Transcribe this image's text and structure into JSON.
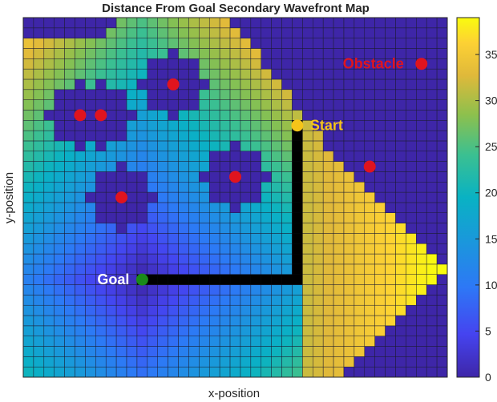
{
  "chart_data": {
    "type": "heatmap",
    "title": "Distance From Goal Secondary Wavefront Map",
    "xlabel": "x-position",
    "ylabel": "y-position",
    "grid": {
      "cols": 41,
      "rows": 35
    },
    "colormap": "parula",
    "colorbar": {
      "ticks": [
        0,
        5,
        10,
        15,
        20,
        25,
        30,
        35
      ],
      "range": [
        0,
        39
      ]
    },
    "goal": {
      "label": "Goal",
      "cell": [
        11,
        9
      ],
      "color": "#1a8a1a"
    },
    "start": {
      "label": "Start",
      "cell": [
        26,
        24
      ],
      "color": "#f5c419"
    },
    "obstacle_label": "Obstacle",
    "obstacles": [
      {
        "cell": [
          5,
          25
        ],
        "radius": 3.0
      },
      {
        "cell": [
          7,
          25
        ],
        "radius": 3.0
      },
      {
        "cell": [
          14,
          28
        ],
        "radius": 3.0
      },
      {
        "cell": [
          9,
          17
        ],
        "radius": 3.0
      },
      {
        "cell": [
          20,
          19
        ],
        "radius": 3.0
      },
      {
        "cell": [
          33,
          20
        ],
        "radius": 0.5
      },
      {
        "cell": [
          38,
          30
        ],
        "radius": 0.5
      }
    ],
    "path": [
      [
        11,
        9
      ],
      [
        12,
        9
      ],
      [
        13,
        9
      ],
      [
        14,
        9
      ],
      [
        15,
        9
      ],
      [
        16,
        9
      ],
      [
        17,
        9
      ],
      [
        18,
        9
      ],
      [
        19,
        9
      ],
      [
        20,
        9
      ],
      [
        21,
        9
      ],
      [
        22,
        9
      ],
      [
        23,
        9
      ],
      [
        24,
        9
      ],
      [
        25,
        9
      ],
      [
        26,
        9
      ],
      [
        26,
        10
      ],
      [
        26,
        11
      ],
      [
        26,
        12
      ],
      [
        26,
        13
      ],
      [
        26,
        14
      ],
      [
        26,
        15
      ],
      [
        26,
        16
      ],
      [
        26,
        17
      ],
      [
        26,
        18
      ],
      [
        26,
        19
      ],
      [
        26,
        20
      ],
      [
        26,
        21
      ],
      [
        26,
        22
      ],
      [
        26,
        23
      ],
      [
        26,
        24
      ]
    ],
    "colors": {
      "obstacle_marker": "#e0141e",
      "path": "#000000",
      "free_max": "#f9fb0e",
      "blocked": "#3e26a8"
    }
  }
}
